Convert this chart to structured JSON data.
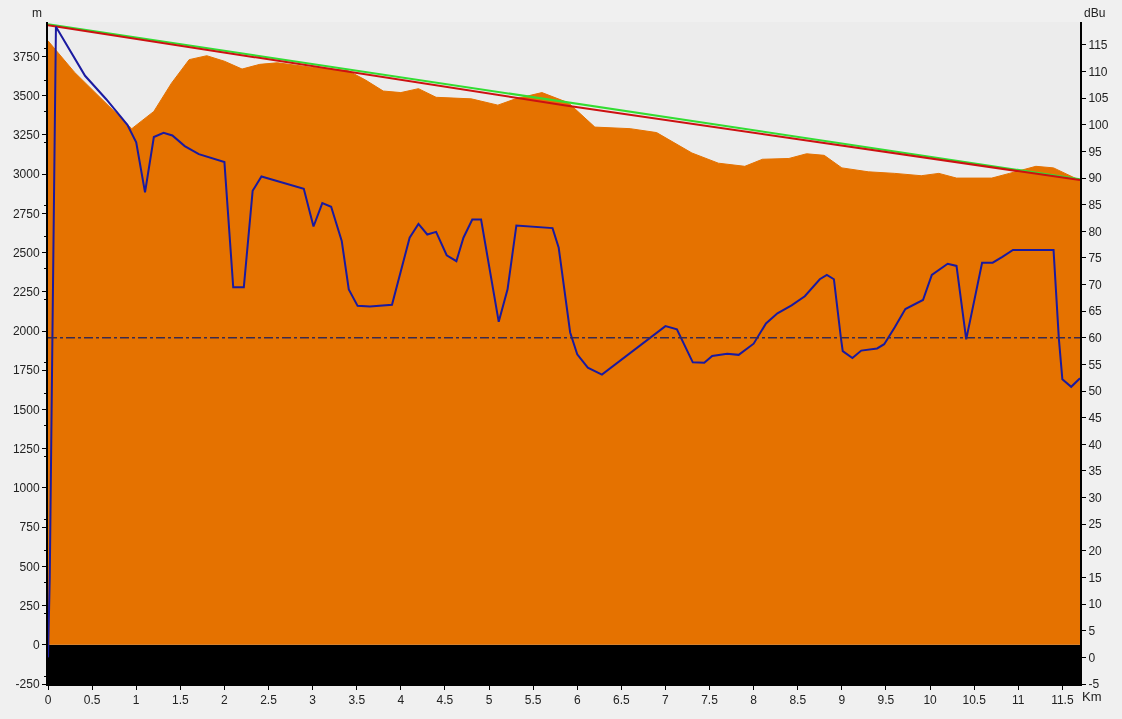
{
  "chart_data": {
    "type": "line",
    "xlabel": "Km",
    "ylabel": "m",
    "y2label": "dBu",
    "xlim": [
      0,
      11.7
    ],
    "xticks": [
      0,
      0.5,
      1,
      1.5,
      2,
      2.5,
      3,
      3.5,
      4,
      4.5,
      5,
      5.5,
      6,
      6.5,
      7,
      7.5,
      8,
      8.5,
      9,
      9.5,
      10,
      10.5,
      11,
      11.5
    ],
    "ylim": [
      -250,
      3970
    ],
    "yticks": [
      -250,
      0,
      250,
      500,
      750,
      1000,
      1250,
      1500,
      1750,
      2000,
      2250,
      2500,
      2750,
      3000,
      3250,
      3500,
      3750
    ],
    "y2lim": [
      -5,
      119.3
    ],
    "y2ticks": [
      -5,
      0,
      5,
      10,
      15,
      20,
      25,
      30,
      35,
      40,
      45,
      50,
      55,
      60,
      65,
      70,
      75,
      80,
      85,
      90,
      95,
      100,
      105,
      110,
      115
    ],
    "grid": false,
    "bands": [
      {
        "axis": "y",
        "from": -250,
        "to": 0,
        "color": "#000000"
      }
    ],
    "ref_lines": [
      {
        "axis": "y2",
        "value": 60,
        "color": "#3a2a50",
        "line_style": "dashed"
      }
    ],
    "series": [
      {
        "type": "area",
        "color": "#e57200",
        "x": [
          0,
          0.3,
          0.95,
          1.2,
          1.4,
          1.6,
          1.8,
          2.0,
          2.2,
          2.4,
          2.6,
          3.0,
          3.4,
          3.6,
          3.8,
          4.0,
          4.2,
          4.4,
          4.8,
          5.1,
          5.3,
          5.6,
          5.9,
          6.2,
          6.6,
          6.9,
          7.3,
          7.6,
          7.9,
          8.1,
          8.4,
          8.6,
          8.8,
          9.0,
          9.3,
          9.6,
          9.9,
          10.1,
          10.3,
          10.7,
          10.9,
          11.2,
          11.4,
          11.7
        ],
        "values": [
          3850,
          3650,
          3290,
          3400,
          3580,
          3730,
          3755,
          3720,
          3670,
          3700,
          3710,
          3680,
          3660,
          3600,
          3530,
          3520,
          3545,
          3490,
          3480,
          3440,
          3480,
          3520,
          3455,
          3300,
          3290,
          3265,
          3135,
          3070,
          3050,
          3095,
          3100,
          3130,
          3120,
          3040,
          3015,
          3005,
          2990,
          3005,
          2975,
          2975,
          3005,
          3050,
          3040,
          2960
        ]
      },
      {
        "color": "#33dd33",
        "x": [
          0,
          11.7
        ],
        "values": [
          3955,
          2968
        ]
      },
      {
        "color": "#cc1111",
        "x": [
          0,
          5.85,
          11.7
        ],
        "values": [
          3950,
          3440,
          2962
        ]
      },
      {
        "color": "#1a1aa0",
        "axis": "y2",
        "x": [
          0,
          0.02,
          0.05,
          0.09,
          0.42,
          0.66,
          0.9,
          1.0,
          1.1,
          1.2,
          1.31,
          1.41,
          1.55,
          1.71,
          2.0,
          2.1,
          2.22,
          2.32,
          2.42,
          2.9,
          3.01,
          3.11,
          3.21,
          3.33,
          3.41,
          3.51,
          3.65,
          3.9,
          4.1,
          4.2,
          4.3,
          4.4,
          4.52,
          4.63,
          4.71,
          4.81,
          4.91,
          5.11,
          5.21,
          5.31,
          5.72,
          5.79,
          5.92,
          6.0,
          6.12,
          6.28,
          7.0,
          7.13,
          7.31,
          7.44,
          7.53,
          7.7,
          7.83,
          8.0,
          8.14,
          8.27,
          8.43,
          8.58,
          8.75,
          8.83,
          8.91,
          8.99,
          9.01,
          9.12,
          9.22,
          9.4,
          9.48,
          9.6,
          9.72,
          9.92,
          10.02,
          10.2,
          10.3,
          10.41,
          10.59,
          10.71,
          10.82,
          10.94,
          11.1,
          11.4,
          11.46,
          11.5,
          11.6,
          11.7
        ],
        "values": [
          0,
          15,
          60,
          118.4,
          109.2,
          104.8,
          100,
          96.7,
          87.3,
          97.7,
          98.5,
          98,
          96,
          94.5,
          93,
          69.5,
          69.5,
          87.6,
          90.3,
          88,
          80.9,
          85.3,
          84.6,
          78.2,
          69.1,
          66,
          65.9,
          66.2,
          78.8,
          81.4,
          79.4,
          79.9,
          75.5,
          74.4,
          78.8,
          82.2,
          82.2,
          63,
          69.1,
          81.1,
          80.6,
          76.9,
          61,
          56.9,
          54.4,
          53.1,
          62.2,
          61.6,
          55.4,
          55.3,
          56.6,
          57,
          56.8,
          58.9,
          62.7,
          64.6,
          66.1,
          67.8,
          71,
          71.8,
          71,
          59.9,
          57.5,
          56.2,
          57.6,
          58,
          58.8,
          62,
          65.4,
          67.1,
          71.8,
          73.9,
          73.5,
          59.7,
          74.1,
          74.1,
          75.2,
          76.5,
          76.5,
          76.5,
          59.9,
          52.2,
          50.8,
          52.4
        ]
      }
    ]
  }
}
